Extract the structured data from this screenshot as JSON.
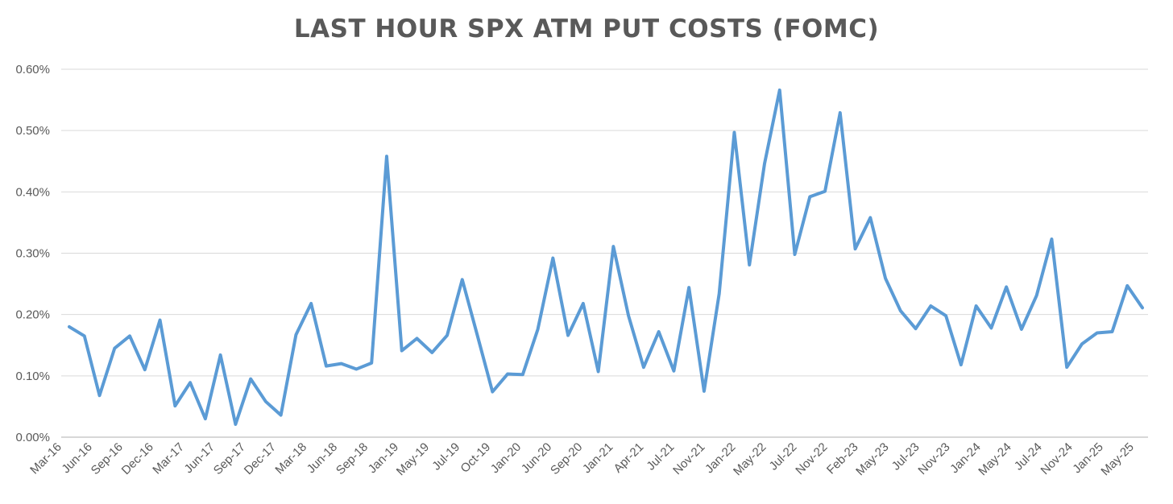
{
  "chart_data": {
    "type": "line",
    "title": "LAST HOUR SPX ATM PUT COSTS (FOMC)",
    "xlabel": "",
    "ylabel": "",
    "ylim": [
      0,
      0.6
    ],
    "y_ticks": [
      "0.00%",
      "0.10%",
      "0.20%",
      "0.30%",
      "0.40%",
      "0.50%",
      "0.60%"
    ],
    "grid": true,
    "legend": "none",
    "line_color": "#5B9BD5",
    "grid_color": "#D9D9D9",
    "x_labels": [
      "Mar-16",
      "Jun-16",
      "Sep-16",
      "Dec-16",
      "Mar-17",
      "Jun-17",
      "Sep-17",
      "Dec-17",
      "Mar-18",
      "Jun-18",
      "Sep-18",
      "Jan-19",
      "May-19",
      "Jul-19",
      "Oct-19",
      "Jan-20",
      "Jun-20",
      "Sep-20",
      "Jan-21",
      "Apr-21",
      "Jul-21",
      "Nov-21",
      "Jan-22",
      "May-22",
      "Jul-22",
      "Nov-22",
      "Feb-23",
      "May-23",
      "Jul-23",
      "Nov-23",
      "Jan-24",
      "May-24",
      "Jul-24",
      "Nov-24",
      "Jan-25",
      "May-25"
    ],
    "values": [
      0.18,
      0.165,
      0.068,
      0.145,
      0.165,
      0.11,
      0.191,
      0.051,
      0.089,
      0.03,
      0.134,
      0.021,
      0.095,
      0.058,
      0.036,
      0.167,
      0.218,
      0.116,
      0.12,
      0.111,
      0.121,
      0.458,
      0.141,
      0.161,
      0.138,
      0.166,
      0.257,
      0.166,
      0.074,
      0.103,
      0.102,
      0.176,
      0.292,
      0.166,
      0.218,
      0.107,
      0.311,
      0.198,
      0.114,
      0.172,
      0.108,
      0.244,
      0.075,
      0.234,
      0.497,
      0.281,
      0.446,
      0.566,
      0.298,
      0.392,
      0.401,
      0.529,
      0.307,
      0.358,
      0.259,
      0.206,
      0.177,
      0.214,
      0.198,
      0.118,
      0.214,
      0.178,
      0.245,
      0.176,
      0.231,
      0.323,
      0.114,
      0.152,
      0.17,
      0.172,
      0.247,
      0.211
    ]
  }
}
